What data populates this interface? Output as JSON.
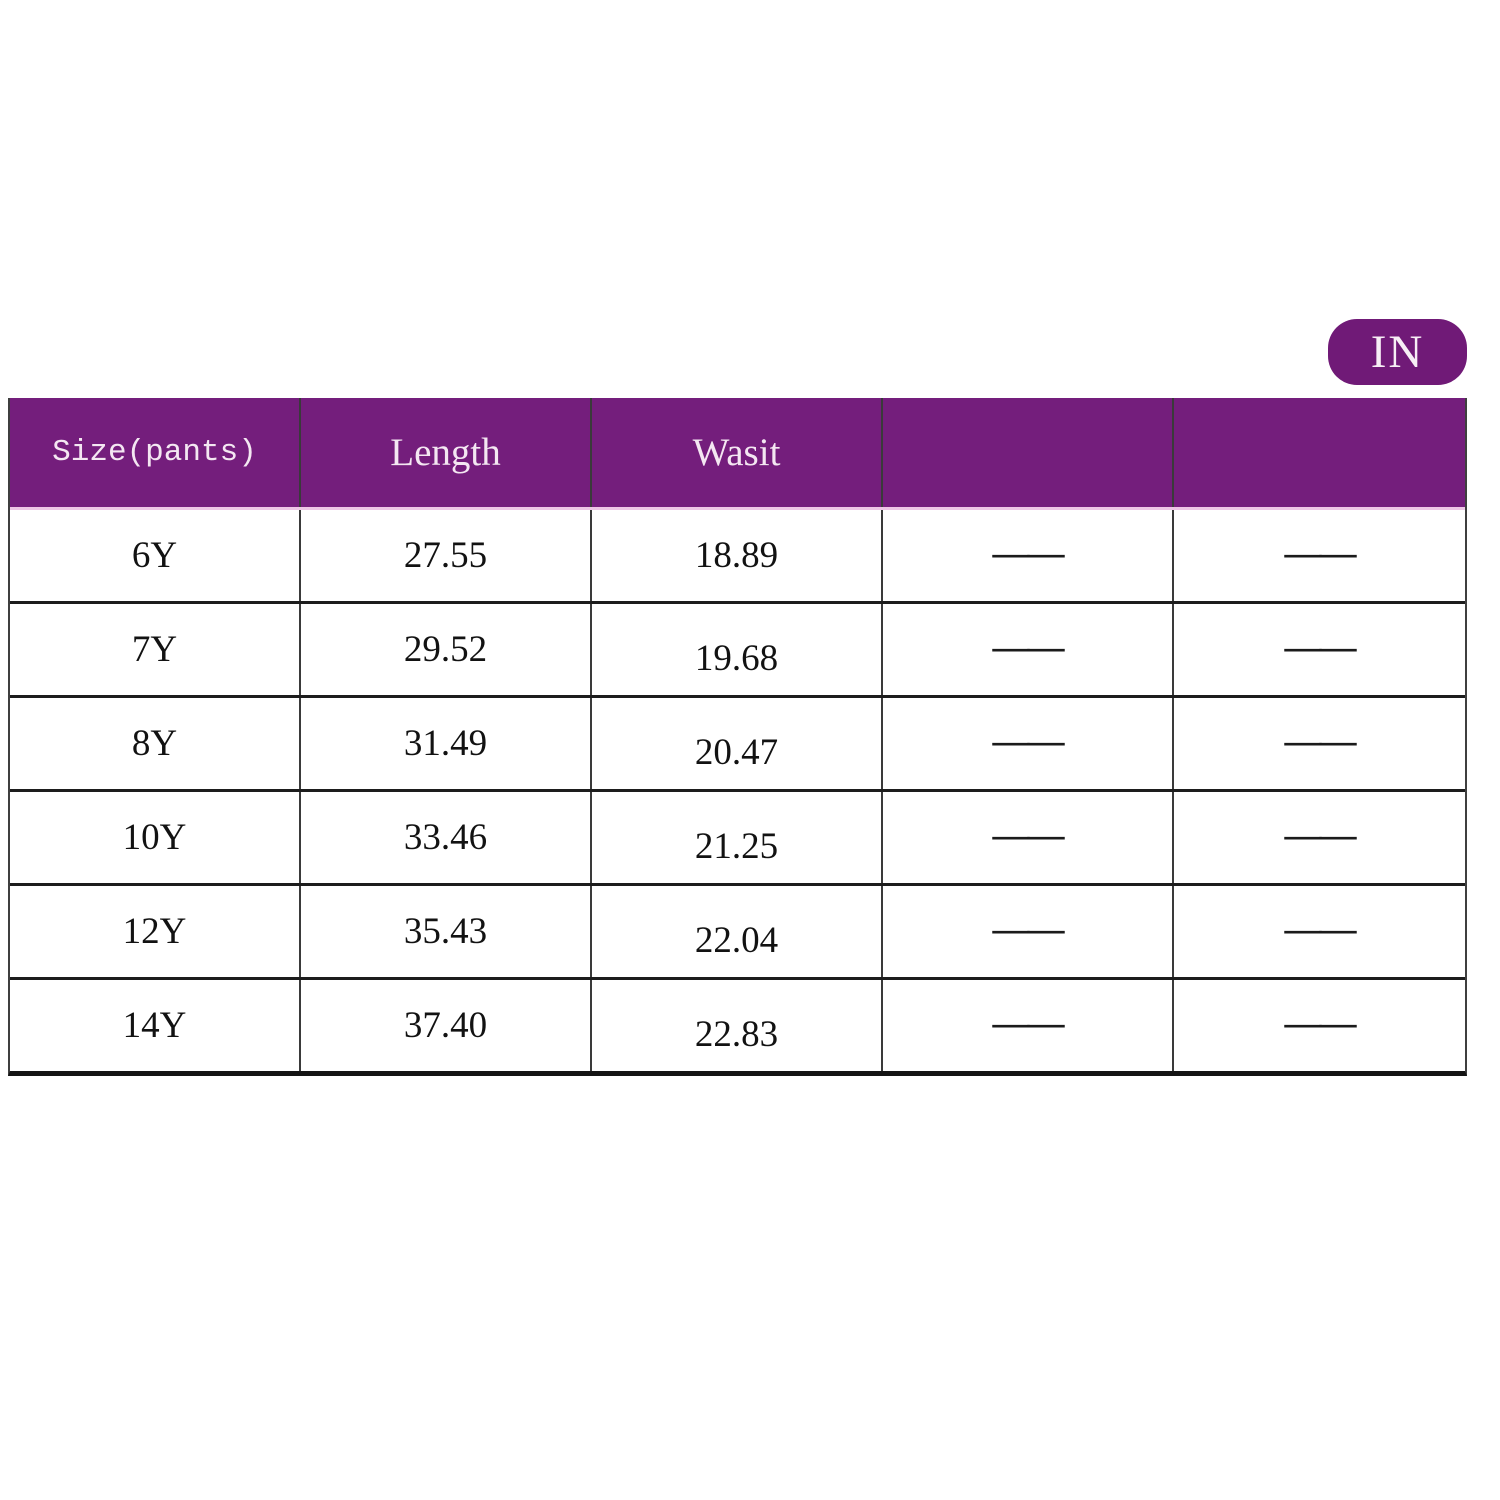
{
  "unit_badge": {
    "label": "IN"
  },
  "size_chart": {
    "headers": [
      "Size(pants)",
      "Length",
      "Wasit",
      "",
      ""
    ],
    "rows": [
      {
        "size": "6Y",
        "length": "27.55",
        "waist": "18.89",
        "dash1": "——",
        "dash2": "——"
      },
      {
        "size": "7Y",
        "length": "29.52",
        "waist": "19.68",
        "dash1": "——",
        "dash2": "——"
      },
      {
        "size": "8Y",
        "length": "31.49",
        "waist": "20.47",
        "dash1": "——",
        "dash2": "——"
      },
      {
        "size": "10Y",
        "length": "33.46",
        "waist": "21.25",
        "dash1": "——",
        "dash2": "——"
      },
      {
        "size": "12Y",
        "length": "35.43",
        "waist": "22.04",
        "dash1": "——",
        "dash2": "——"
      },
      {
        "size": "14Y",
        "length": "37.40",
        "waist": "22.83",
        "dash1": "——",
        "dash2": "——"
      }
    ]
  },
  "colors": {
    "header_purple": "#741e7c",
    "badge_purple": "#701a77",
    "header_text": "#f4e7f2",
    "pink_divider": "#eec6e6",
    "grid_line": "#1d1d1d",
    "column_divider": "#3a3a3a",
    "body_text": "#121212",
    "background": "#ffffff"
  }
}
